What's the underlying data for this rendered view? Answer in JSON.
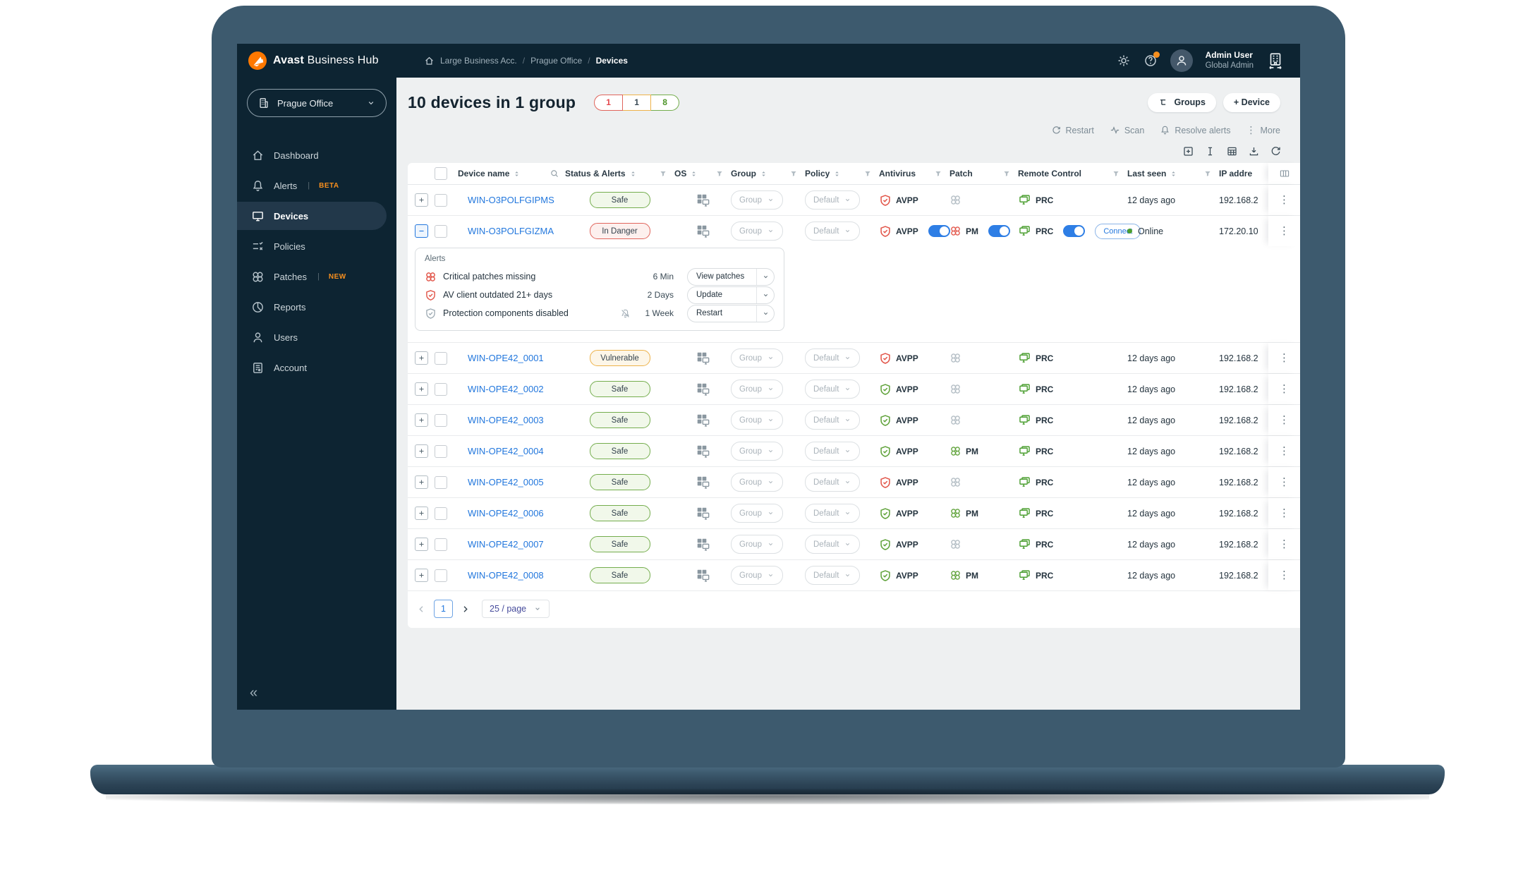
{
  "colors": {
    "accent_orange": "#ff7800",
    "link_blue": "#2277dd",
    "safe_green": "#61a33c",
    "danger_red": "#e2574b",
    "warn_amber": "#edb24a",
    "toggle_blue": "#2e7ee5",
    "dark_navy": "#0d2432"
  },
  "topbar": {
    "brand_bold": "Avast",
    "brand_light": "Business Hub",
    "breadcrumb": [
      "Large Business Acc.",
      "Prague Office",
      "Devices"
    ],
    "user": {
      "name": "Admin User",
      "role": "Global Admin"
    }
  },
  "sidebar": {
    "org_selector": "Prague Office",
    "items": [
      {
        "label": "Dashboard",
        "icon": "home",
        "badge": "",
        "active": false
      },
      {
        "label": "Alerts",
        "icon": "bell",
        "badge": "BETA",
        "active": false
      },
      {
        "label": "Devices",
        "icon": "monitor",
        "badge": "",
        "active": true
      },
      {
        "label": "Policies",
        "icon": "policies",
        "badge": "",
        "active": false
      },
      {
        "label": "Patches",
        "icon": "patch",
        "badge": "NEW",
        "active": false
      },
      {
        "label": "Reports",
        "icon": "pie",
        "badge": "",
        "active": false
      },
      {
        "label": "Users",
        "icon": "user",
        "badge": "",
        "active": false
      },
      {
        "label": "Account",
        "icon": "doc",
        "badge": "",
        "active": false
      }
    ],
    "collapse": "«"
  },
  "main": {
    "title": "10 devices in 1 group",
    "counts": [
      {
        "value": "1",
        "type": "danger"
      },
      {
        "value": "1",
        "type": "warn"
      },
      {
        "value": "8",
        "type": "safe"
      }
    ],
    "buttons": {
      "groups": "Groups",
      "device": "+ Device"
    },
    "actions": {
      "restart": "Restart",
      "scan": "Scan",
      "resolve": "Resolve alerts",
      "more": "More"
    },
    "table": {
      "headers": {
        "device": "Device name",
        "status": "Status & Alerts",
        "os": "OS",
        "group": "Group",
        "policy": "Policy",
        "antivirus": "Antivirus",
        "patch": "Patch",
        "remote": "Remote Control",
        "last_seen": "Last seen",
        "ip": "IP addre"
      },
      "group_value": "Group",
      "policy_value": "Default",
      "labels": {
        "av": "AVPP",
        "patch": "PM",
        "rc": "PRC",
        "connect": "Connect",
        "online": "Online"
      },
      "rows": [
        {
          "name": "WIN-O3POLFGIPMS",
          "status": "Safe",
          "status_type": "safe",
          "expanded": false,
          "av_state": "red",
          "av_toggle": false,
          "patch_state": "none",
          "patch_toggle": false,
          "rc_toggle": false,
          "connect": false,
          "online": false,
          "last_seen": "12 days ago",
          "ip": "192.168.2"
        },
        {
          "name": "WIN-O3POLFGIZMA",
          "status": "In Danger",
          "status_type": "danger",
          "expanded": true,
          "av_state": "red",
          "av_toggle": true,
          "patch_state": "red",
          "patch_toggle": true,
          "rc_toggle": true,
          "connect": true,
          "online": true,
          "last_seen": "Online",
          "ip": "172.20.10"
        },
        {
          "name": "WIN-OPE42_0001",
          "status": "Vulnerable",
          "status_type": "warn",
          "expanded": false,
          "av_state": "red",
          "av_toggle": false,
          "patch_state": "none",
          "patch_toggle": false,
          "rc_toggle": false,
          "connect": false,
          "online": false,
          "last_seen": "12 days ago",
          "ip": "192.168.2"
        },
        {
          "name": "WIN-OPE42_0002",
          "status": "Safe",
          "status_type": "safe",
          "expanded": false,
          "av_state": "green",
          "av_toggle": false,
          "patch_state": "none",
          "patch_toggle": false,
          "rc_toggle": false,
          "connect": false,
          "online": false,
          "last_seen": "12 days ago",
          "ip": "192.168.2"
        },
        {
          "name": "WIN-OPE42_0003",
          "status": "Safe",
          "status_type": "safe",
          "expanded": false,
          "av_state": "green",
          "av_toggle": false,
          "patch_state": "none",
          "patch_toggle": false,
          "rc_toggle": false,
          "connect": false,
          "online": false,
          "last_seen": "12 days ago",
          "ip": "192.168.2"
        },
        {
          "name": "WIN-OPE42_0004",
          "status": "Safe",
          "status_type": "safe",
          "expanded": false,
          "av_state": "green",
          "av_toggle": false,
          "patch_state": "green",
          "patch_toggle": false,
          "rc_toggle": false,
          "connect": false,
          "online": false,
          "last_seen": "12 days ago",
          "ip": "192.168.2"
        },
        {
          "name": "WIN-OPE42_0005",
          "status": "Safe",
          "status_type": "safe",
          "expanded": false,
          "av_state": "red",
          "av_toggle": false,
          "patch_state": "none",
          "patch_toggle": false,
          "rc_toggle": false,
          "connect": false,
          "online": false,
          "last_seen": "12 days ago",
          "ip": "192.168.2"
        },
        {
          "name": "WIN-OPE42_0006",
          "status": "Safe",
          "status_type": "safe",
          "expanded": false,
          "av_state": "green",
          "av_toggle": false,
          "patch_state": "green",
          "patch_toggle": false,
          "rc_toggle": false,
          "connect": false,
          "online": false,
          "last_seen": "12 days ago",
          "ip": "192.168.2"
        },
        {
          "name": "WIN-OPE42_0007",
          "status": "Safe",
          "status_type": "safe",
          "expanded": false,
          "av_state": "green",
          "av_toggle": false,
          "patch_state": "none",
          "patch_toggle": false,
          "rc_toggle": false,
          "connect": false,
          "online": false,
          "last_seen": "12 days ago",
          "ip": "192.168.2"
        },
        {
          "name": "WIN-OPE42_0008",
          "status": "Safe",
          "status_type": "safe",
          "expanded": false,
          "av_state": "green",
          "av_toggle": false,
          "patch_state": "green",
          "patch_toggle": false,
          "rc_toggle": false,
          "connect": false,
          "online": false,
          "last_seen": "12 days ago",
          "ip": "192.168.2"
        }
      ],
      "alerts_panel": {
        "title": "Alerts",
        "items": [
          {
            "icon": "patch-red",
            "text": "Critical patches missing",
            "muted_bell": false,
            "time": "6 Min",
            "action": "View patches"
          },
          {
            "icon": "shield-red",
            "text": "AV client outdated 21+ days",
            "muted_bell": false,
            "time": "2 Days",
            "action": "Update"
          },
          {
            "icon": "shield-gray",
            "text": "Protection components disabled",
            "muted_bell": true,
            "time": "1 Week",
            "action": "Restart"
          }
        ]
      },
      "pagination": {
        "page": "1",
        "per_page": "25 / page"
      }
    }
  }
}
